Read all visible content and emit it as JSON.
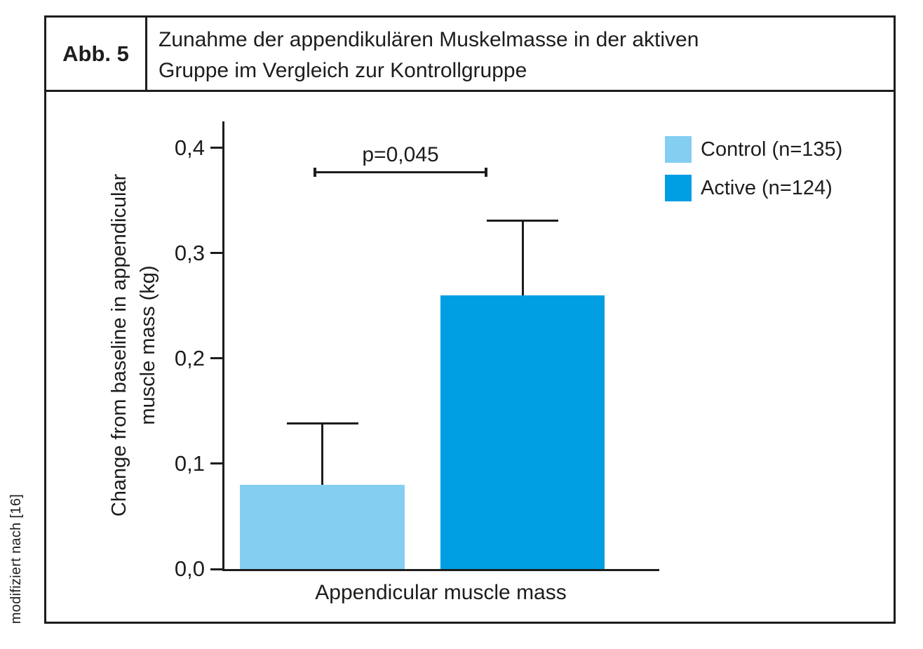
{
  "figure": {
    "label": "Abb. 5",
    "title_line1": "Zunahme der appendikulären Muskelmasse in der aktiven",
    "title_line2": "Gruppe im Vergleich zur Kontrollgruppe",
    "source_note": "modifiziert nach [16]"
  },
  "chart_data": {
    "type": "bar",
    "categories": [
      "Appendicular muscle mass"
    ],
    "series": [
      {
        "name": "Control (n=135)",
        "values": [
          0.08
        ],
        "error_top": [
          0.137
        ],
        "color": "#84CEF2"
      },
      {
        "name": "Active (n=124)",
        "values": [
          0.26
        ],
        "error_top": [
          0.33
        ],
        "color": "#009EE2"
      }
    ],
    "ylabel": "Change from baseline in appendicular muscle mass (kg)",
    "ylabel_line1": "Change from baseline in appendicular",
    "ylabel_line2": "muscle mass (kg)",
    "xlabel": "Appendicular muscle mass",
    "ylim": [
      0,
      0.425
    ],
    "yticks": [
      {
        "label": "0,0",
        "value": 0.0
      },
      {
        "label": "0,1",
        "value": 0.1
      },
      {
        "label": "0,2",
        "value": 0.2
      },
      {
        "label": "0,3",
        "value": 0.3
      },
      {
        "label": "0,4",
        "value": 0.4
      }
    ],
    "annotation": {
      "text": "p=0,045",
      "y": 0.377
    },
    "legend_position": "top-right",
    "grid": false,
    "axis_color": "#1d1d1b"
  }
}
